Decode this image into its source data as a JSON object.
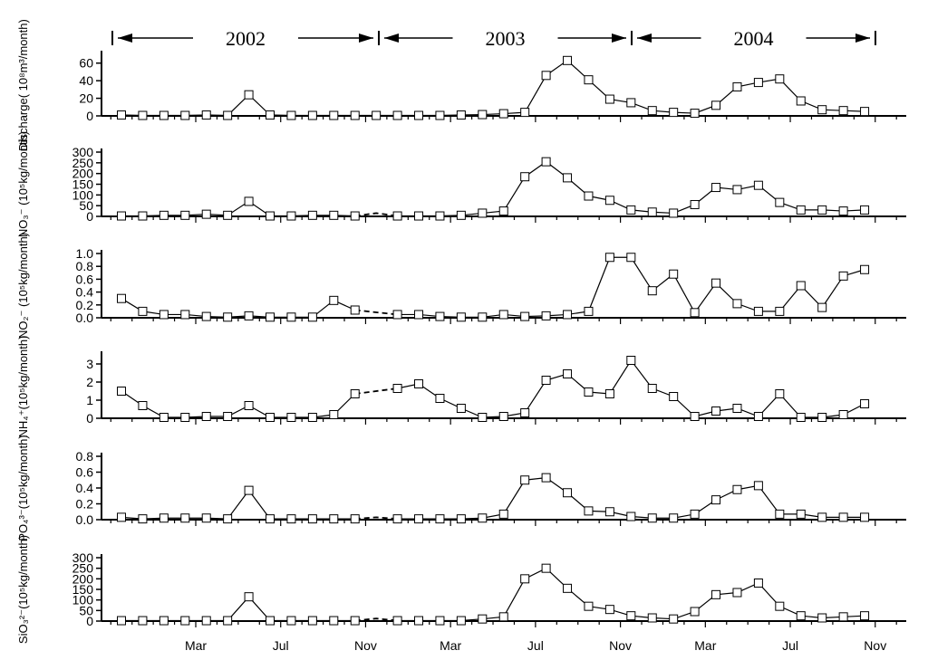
{
  "chart_data": {
    "type": "line",
    "years": [
      {
        "label": "2002",
        "start_index": 0,
        "end_index": 11
      },
      {
        "label": "2003",
        "start_index": 12,
        "end_index": 24
      },
      {
        "label": "2004",
        "start_index": 25,
        "end_index": 35
      }
    ],
    "x_month_ticks": [
      {
        "label": "Mar",
        "index": 3
      },
      {
        "label": "Jul",
        "index": 7
      },
      {
        "label": "Nov",
        "index": 11
      },
      {
        "label": "Mar",
        "index": 15
      },
      {
        "label": "Jul",
        "index": 19
      },
      {
        "label": "Nov",
        "index": 23
      },
      {
        "label": "Mar",
        "index": 27
      },
      {
        "label": "Jul",
        "index": 31
      },
      {
        "label": "Nov",
        "index": 35
      }
    ],
    "panels": [
      {
        "name": "discharge",
        "ylabel_lines": [
          "Discharge(  10⁸m³/month)"
        ],
        "ylim": [
          0,
          70
        ],
        "yticks": [
          0,
          20,
          40,
          60
        ],
        "yticklabels": [
          "0",
          "20",
          "40",
          "60"
        ],
        "solid_segments": [
          {
            "x": [
              0,
              1,
              2,
              3,
              4,
              5,
              6,
              7,
              8,
              9,
              10,
              11,
              12,
              13,
              14,
              15,
              16,
              17,
              18,
              19,
              20,
              21,
              22,
              23,
              24,
              25,
              26,
              27,
              28,
              29,
              30,
              31,
              32,
              33,
              34,
              35
            ],
            "y": [
              1,
              0.5,
              0.5,
              0.5,
              1,
              0.5,
              24,
              1,
              0.5,
              0.5,
              0.5,
              0.5,
              0.5,
              0.5,
              0.5,
              0.5,
              1,
              1.5,
              2.5,
              4,
              46,
              63,
              41,
              19,
              15,
              6,
              4,
              3,
              12,
              33,
              38,
              42,
              17,
              7,
              6,
              5
            ]
          }
        ],
        "dashed_segments": []
      },
      {
        "name": "nitrate",
        "ylabel_lines": [
          "NO₃⁻ (10⁵kg/month)"
        ],
        "ylim": [
          0,
          300
        ],
        "yticks": [
          0,
          50,
          100,
          150,
          200,
          250,
          300
        ],
        "yticklabels": [
          "0",
          "50",
          "100",
          "150",
          "200",
          "250",
          "300"
        ],
        "solid_segments": [
          {
            "x": [
              0,
              1,
              2,
              3,
              4,
              5,
              6,
              7,
              8,
              9,
              10,
              11
            ],
            "y": [
              2,
              2,
              5,
              5,
              10,
              5,
              70,
              2,
              2,
              5,
              5,
              2
            ]
          },
          {
            "x": [
              13,
              14,
              15,
              16,
              17,
              18,
              19,
              20,
              21,
              22,
              23,
              24,
              25,
              26,
              27,
              28,
              29,
              30,
              31,
              32,
              33,
              34,
              35
            ],
            "y": [
              2,
              2,
              2,
              5,
              15,
              25,
              185,
              255,
              180,
              95,
              75,
              30,
              20,
              15,
              55,
              135,
              125,
              145,
              65,
              30,
              30,
              25,
              30
            ]
          }
        ],
        "dashed_segments": [
          {
            "x": [
              11,
              12,
              13
            ],
            "y": [
              2,
              15,
              2
            ]
          }
        ]
      },
      {
        "name": "nitrite",
        "ylabel_lines": [
          "NO₂⁻ (10⁵kg/month)"
        ],
        "ylim": [
          0,
          1.0
        ],
        "yticks": [
          0.0,
          0.2,
          0.4,
          0.6,
          0.8,
          1.0
        ],
        "yticklabels": [
          "0.0",
          "0.2",
          "0.4",
          "0.6",
          "0.8",
          "1.0"
        ],
        "solid_segments": [
          {
            "x": [
              0,
              1,
              2,
              3,
              4,
              5,
              6,
              7,
              8,
              9,
              10,
              11
            ],
            "y": [
              0.3,
              0.1,
              0.05,
              0.05,
              0.02,
              0.01,
              0.03,
              0.01,
              0.01,
              0.01,
              0.27,
              0.12
            ]
          },
          {
            "x": [
              13,
              14,
              15,
              16,
              17,
              18,
              19,
              20,
              21,
              22,
              23,
              24,
              25,
              26,
              27,
              28,
              29,
              30,
              31,
              32,
              33,
              34,
              35
            ],
            "y": [
              0.05,
              0.05,
              0.02,
              0.01,
              0.01,
              0.05,
              0.02,
              0.03,
              0.05,
              0.1,
              0.94,
              0.94,
              0.42,
              0.68,
              0.08,
              0.54,
              0.22,
              0.1,
              0.1,
              0.5,
              0.16,
              0.65,
              0.75
            ]
          }
        ],
        "dashed_segments": [
          {
            "x": [
              11,
              13
            ],
            "y": [
              0.12,
              0.05
            ]
          }
        ]
      },
      {
        "name": "ammonium",
        "ylabel_lines": [
          "NH₄⁺(10⁵kg/month)"
        ],
        "ylim": [
          0,
          3.5
        ],
        "yticks": [
          0,
          1,
          2,
          3
        ],
        "yticklabels": [
          "0",
          "1",
          "2",
          "3"
        ],
        "solid_segments": [
          {
            "x": [
              0,
              1,
              2,
              3,
              4,
              5,
              6,
              7,
              8,
              9,
              10,
              11
            ],
            "y": [
              1.5,
              0.7,
              0.05,
              0.05,
              0.1,
              0.1,
              0.7,
              0.05,
              0.05,
              0.05,
              0.2,
              1.35
            ]
          },
          {
            "x": [
              13,
              14,
              15,
              16,
              17,
              18,
              19,
              20,
              21,
              22,
              23,
              24,
              25,
              26,
              27,
              28,
              29,
              30,
              31,
              32,
              33,
              34,
              35
            ],
            "y": [
              1.65,
              1.9,
              1.1,
              0.55,
              0.05,
              0.1,
              0.3,
              2.1,
              2.45,
              1.45,
              1.35,
              3.2,
              1.65,
              1.2,
              0.1,
              0.4,
              0.55,
              0.1,
              1.35,
              0.05,
              0.05,
              0.2,
              0.8
            ]
          }
        ],
        "dashed_segments": [
          {
            "x": [
              11,
              13
            ],
            "y": [
              1.35,
              1.65
            ]
          }
        ]
      },
      {
        "name": "phosphate",
        "ylabel_lines": [
          "PO₄³⁻(10⁵kg/month)"
        ],
        "ylim": [
          0,
          0.8
        ],
        "yticks": [
          0.0,
          0.2,
          0.4,
          0.6,
          0.8
        ],
        "yticklabels": [
          "0.0",
          "0.2",
          "0.4",
          "0.6",
          "0.8"
        ],
        "solid_segments": [
          {
            "x": [
              0,
              1,
              2,
              3,
              4,
              5,
              6,
              7,
              8,
              9,
              10,
              11
            ],
            "y": [
              0.03,
              0.01,
              0.02,
              0.02,
              0.02,
              0.01,
              0.37,
              0.01,
              0.01,
              0.01,
              0.01,
              0.01
            ]
          },
          {
            "x": [
              13,
              14,
              15,
              16,
              17,
              18,
              19,
              20,
              21,
              22,
              23,
              24,
              25,
              26,
              27,
              28,
              29,
              30,
              31,
              32,
              33,
              34,
              35
            ],
            "y": [
              0.01,
              0.01,
              0.01,
              0.01,
              0.02,
              0.07,
              0.5,
              0.53,
              0.34,
              0.11,
              0.1,
              0.04,
              0.02,
              0.02,
              0.07,
              0.25,
              0.38,
              0.43,
              0.07,
              0.07,
              0.03,
              0.03,
              0.03
            ]
          }
        ],
        "dashed_segments": [
          {
            "x": [
              11,
              12,
              13
            ],
            "y": [
              0.01,
              0.03,
              0.01
            ]
          }
        ]
      },
      {
        "name": "silicate",
        "ylabel_lines": [
          "SiO₃²⁻(10⁵kg/month)"
        ],
        "ylim": [
          0,
          300
        ],
        "yticks": [
          0,
          50,
          100,
          150,
          200,
          250,
          300
        ],
        "yticklabels": [
          "0",
          "50",
          "100",
          "150",
          "200",
          "250",
          "300"
        ],
        "solid_segments": [
          {
            "x": [
              0,
              1,
              2,
              3,
              4,
              5,
              6,
              7,
              8,
              9,
              10,
              11
            ],
            "y": [
              2,
              2,
              2,
              2,
              2,
              2,
              115,
              2,
              2,
              2,
              2,
              2
            ]
          },
          {
            "x": [
              13,
              14,
              15,
              16,
              17,
              18,
              19,
              20,
              21,
              22,
              23,
              24,
              25,
              26,
              27,
              28,
              29,
              30,
              31,
              32,
              33,
              34,
              35
            ],
            "y": [
              2,
              2,
              2,
              2,
              10,
              20,
              200,
              250,
              155,
              70,
              55,
              25,
              15,
              10,
              45,
              125,
              135,
              180,
              70,
              25,
              15,
              20,
              25
            ]
          }
        ],
        "dashed_segments": [
          {
            "x": [
              11,
              12,
              13
            ],
            "y": [
              2,
              12,
              2
            ]
          }
        ]
      }
    ]
  }
}
